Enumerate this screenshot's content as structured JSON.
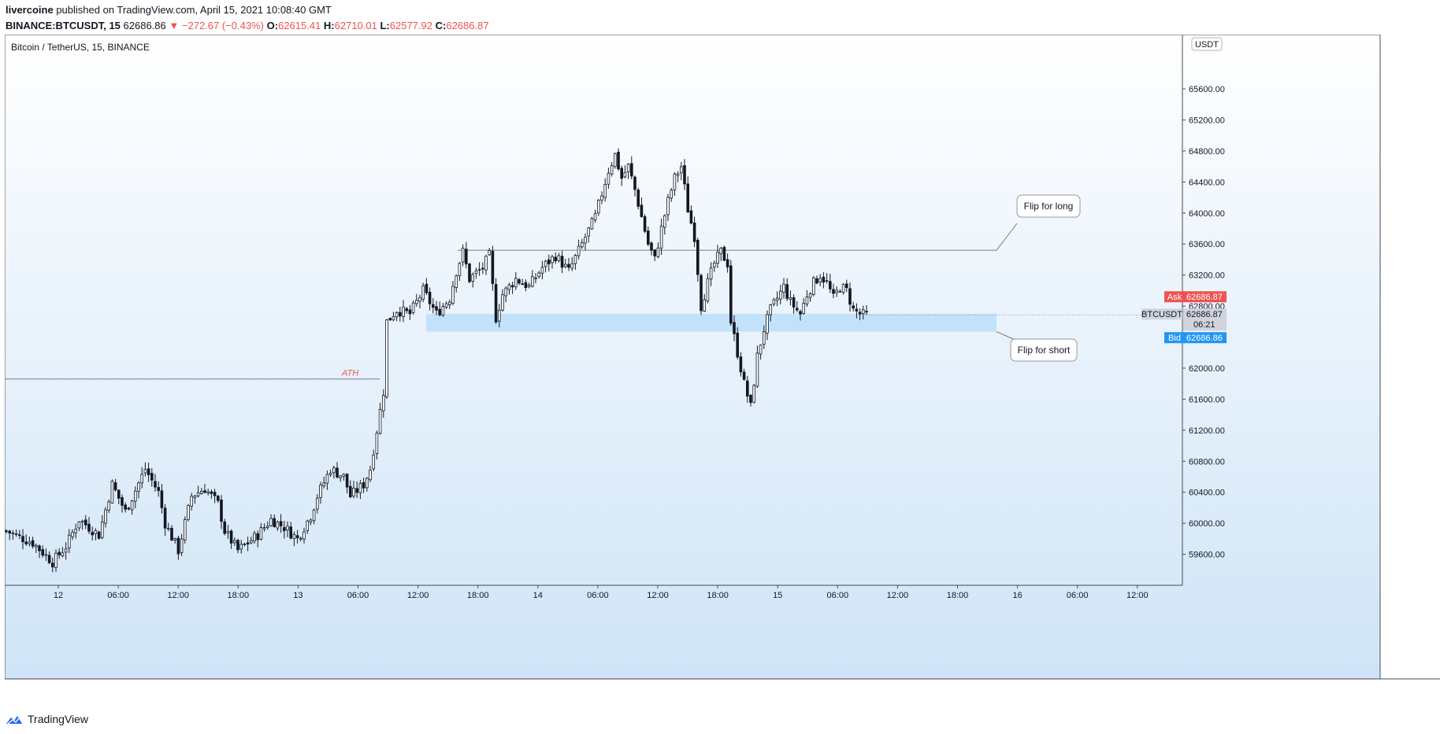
{
  "header": {
    "author": "livercoine",
    "published": " published on TradingView.com, April 15, 2021 10:08:40 GMT",
    "symbol": "BINANCE:BTCUSDT, 15",
    "last": "62686.86",
    "change": "−272.67 (−0.43%)",
    "o_label": "O:",
    "o": "62615.41",
    "h_label": "H:",
    "h": "62710.01",
    "l_label": "L:",
    "l": "62577.92",
    "c_label": "C:",
    "c": "62686.87"
  },
  "chart_title": "Bitcoin / TetherUS, 15, BINANCE",
  "footer": {
    "brand": "TradingView"
  },
  "colors": {
    "up": "#131722",
    "down": "#131722",
    "zone": "#bbdefb",
    "ask": "#ef5350",
    "bid": "#2196f3",
    "bg_top": "#ffffff",
    "bg_bottom": "#cfe4f7"
  },
  "chart_data": {
    "type": "candlestick",
    "title": "Bitcoin / TetherUS, 15, BINANCE",
    "ylabel": "USDT",
    "ylim": [
      59200,
      66300
    ],
    "y_ticks": [
      59600,
      60000,
      60400,
      60800,
      61200,
      61600,
      62000,
      62400,
      62800,
      63200,
      63600,
      64000,
      64400,
      64800,
      65200,
      65600
    ],
    "x_ticks": [
      "12",
      "06:00",
      "12:00",
      "18:00",
      "13",
      "06:00",
      "12:00",
      "18:00",
      "14",
      "06:00",
      "12:00",
      "18:00",
      "15",
      "06:00",
      "12:00",
      "18:00",
      "16",
      "06:00",
      "12:00"
    ],
    "price_path": [
      [
        0,
        59900
      ],
      [
        8,
        59750
      ],
      [
        14,
        59500
      ],
      [
        18,
        59700
      ],
      [
        22,
        60050
      ],
      [
        28,
        59850
      ],
      [
        32,
        60500
      ],
      [
        36,
        60150
      ],
      [
        42,
        60700
      ],
      [
        46,
        60400
      ],
      [
        48,
        60000
      ],
      [
        52,
        59650
      ],
      [
        56,
        60350
      ],
      [
        60,
        60450
      ],
      [
        64,
        60250
      ],
      [
        66,
        59900
      ],
      [
        70,
        59650
      ],
      [
        76,
        59850
      ],
      [
        80,
        60050
      ],
      [
        84,
        59950
      ],
      [
        88,
        59800
      ],
      [
        92,
        60100
      ],
      [
        94,
        60350
      ],
      [
        98,
        60700
      ],
      [
        102,
        60600
      ],
      [
        104,
        60350
      ],
      [
        108,
        60500
      ],
      [
        110,
        60700
      ],
      [
        112,
        61200
      ],
      [
        114,
        61700
      ],
      [
        115,
        62600
      ],
      [
        118,
        62750
      ],
      [
        122,
        62700
      ],
      [
        126,
        63000
      ],
      [
        130,
        62700
      ],
      [
        134,
        62900
      ],
      [
        136,
        63250
      ],
      [
        138,
        63500
      ],
      [
        140,
        63150
      ],
      [
        144,
        63300
      ],
      [
        146,
        63450
      ],
      [
        148,
        62650
      ],
      [
        150,
        62950
      ],
      [
        154,
        63150
      ],
      [
        158,
        63050
      ],
      [
        162,
        63300
      ],
      [
        166,
        63450
      ],
      [
        170,
        63250
      ],
      [
        174,
        63600
      ],
      [
        178,
        63950
      ],
      [
        182,
        64550
      ],
      [
        184,
        64750
      ],
      [
        186,
        64450
      ],
      [
        188,
        64600
      ],
      [
        190,
        64300
      ],
      [
        194,
        63600
      ],
      [
        196,
        63400
      ],
      [
        198,
        63800
      ],
      [
        200,
        64150
      ],
      [
        202,
        64450
      ],
      [
        204,
        64600
      ],
      [
        206,
        64050
      ],
      [
        208,
        63700
      ],
      [
        210,
        62800
      ],
      [
        212,
        63100
      ],
      [
        214,
        63350
      ],
      [
        216,
        63500
      ],
      [
        218,
        63350
      ],
      [
        219,
        62600
      ],
      [
        221,
        62200
      ],
      [
        223,
        61800
      ],
      [
        225,
        61500
      ],
      [
        227,
        62150
      ],
      [
        229,
        62500
      ],
      [
        231,
        62750
      ],
      [
        233,
        62900
      ],
      [
        235,
        63050
      ],
      [
        237,
        62850
      ],
      [
        240,
        62700
      ],
      [
        242,
        62950
      ],
      [
        244,
        63100
      ],
      [
        246,
        63200
      ],
      [
        248,
        63100
      ],
      [
        250,
        62900
      ],
      [
        252,
        63050
      ],
      [
        254,
        63000
      ],
      [
        256,
        62750
      ],
      [
        258,
        62700
      ],
      [
        259,
        62687
      ]
    ],
    "current_price": 62686.87,
    "ask": 62686.87,
    "bid": 62686.86,
    "countdown": "06:21",
    "symbol_label": "BTCUSDT",
    "ath_level": 61860,
    "resistance_level": 63520,
    "support_zone": [
      62470,
      62700
    ],
    "annotations": [
      {
        "text": "ATH",
        "color": "#ef5350"
      },
      {
        "text": "Flip for long"
      },
      {
        "text": "Flip for short"
      }
    ],
    "x_axis_bars_per_day": 96,
    "ask_label": "Ask",
    "bid_label": "Bid"
  }
}
